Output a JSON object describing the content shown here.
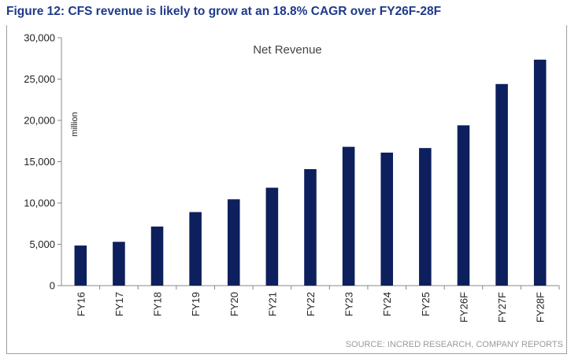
{
  "title": "Figure 12: CFS revenue is likely to grow at an 18.8% CAGR over FY26F-28F",
  "source": "SOURCE: INCRED RESEARCH, COMPANY REPORTS",
  "colors": {
    "bar": "#0d1f5c",
    "title": "#1f3a8a",
    "axis": "#888888"
  },
  "chart_data": {
    "type": "bar",
    "subtitle": "Net Revenue",
    "ylabel": "million",
    "xlabel": "",
    "categories": [
      "FY16",
      "FY17",
      "FY18",
      "FY19",
      "FY20",
      "FY21",
      "FY22",
      "FY23",
      "FY24",
      "FY25",
      "FY26F",
      "FY27F",
      "FY28F"
    ],
    "values": [
      4850,
      5300,
      7150,
      8900,
      10450,
      11850,
      14100,
      16800,
      16100,
      16650,
      19400,
      24400,
      27350
    ],
    "ylim": [
      0,
      30000
    ],
    "yticks": [
      0,
      5000,
      10000,
      15000,
      20000,
      25000,
      30000
    ],
    "ytick_labels": [
      "0",
      "5,000",
      "10,000",
      "15,000",
      "20,000",
      "25,000",
      "30,000"
    ],
    "grid": false,
    "legend": "none"
  }
}
